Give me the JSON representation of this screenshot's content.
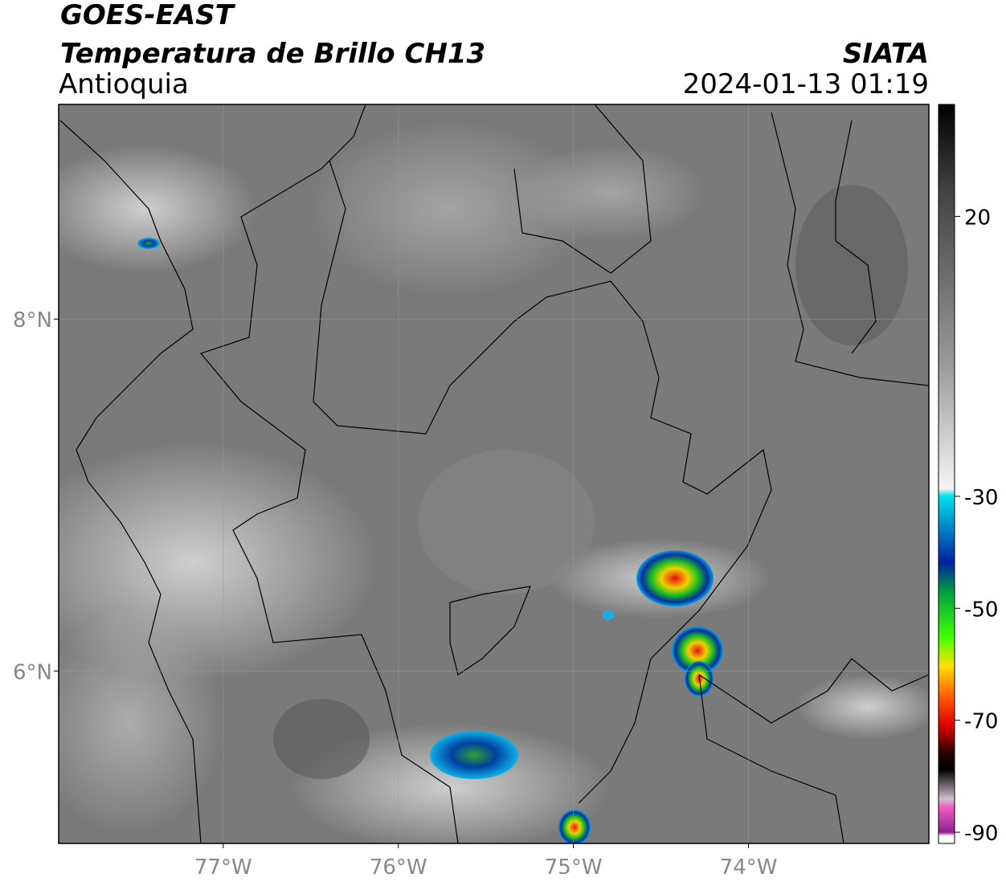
{
  "header": {
    "title": "GOES-EAST",
    "subtitle": "Temperatura de Brillo CH13",
    "region": "Antioquia",
    "brand": "SIATA",
    "datetime": "2024-01-13 01:19"
  },
  "map": {
    "lonlim": [
      -77.94,
      -72.97
    ],
    "latlim": [
      5.02,
      9.22
    ],
    "lon_ticks": [
      {
        "value": -77,
        "label": "77°W"
      },
      {
        "value": -76,
        "label": "76°W"
      },
      {
        "value": -75,
        "label": "75°W"
      },
      {
        "value": -74,
        "label": "74°W"
      }
    ],
    "lat_ticks": [
      {
        "value": 8,
        "label": "8°N"
      },
      {
        "value": 6,
        "label": "6°N"
      }
    ],
    "grid": true
  },
  "colorbar": {
    "lim": [
      -92,
      40
    ],
    "ticks": [
      20,
      -30,
      -50,
      -70,
      -90
    ]
  }
}
